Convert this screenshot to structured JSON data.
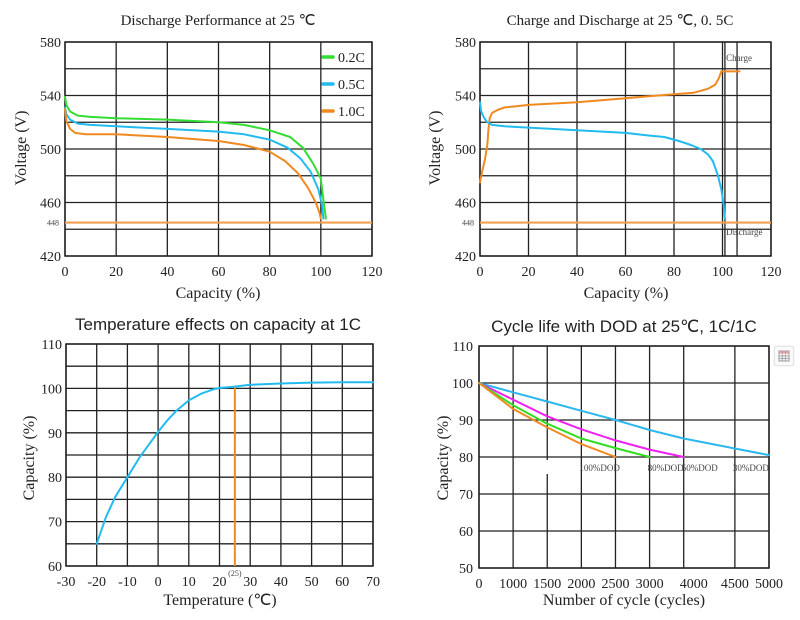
{
  "chart_data": [
    {
      "id": "discharge",
      "type": "line",
      "title": "Discharge Performance at 25 ℃",
      "xlabel": "Capacity (%)",
      "ylabel": "Voltage (V)",
      "xlim": [
        0,
        120
      ],
      "ylim": [
        420,
        580
      ],
      "xticks": [
        0,
        20,
        40,
        60,
        80,
        100,
        120
      ],
      "yticks": [
        580,
        540,
        500,
        460,
        420
      ],
      "ygrid_step": 20,
      "grid": true,
      "legend_position": "top-right",
      "reference_line": {
        "y": 448,
        "label": "448",
        "color": "#f0a050"
      },
      "series": [
        {
          "name": "0.2C",
          "color": "#33dd33",
          "x": [
            0,
            0.5,
            2,
            5,
            10,
            20,
            40,
            60,
            70,
            80,
            88,
            93,
            97,
            100,
            101,
            102
          ],
          "y": [
            539,
            533,
            528,
            525,
            524,
            523,
            522,
            520,
            518,
            514,
            509,
            501,
            489,
            478,
            462,
            448
          ]
        },
        {
          "name": "0.5C",
          "color": "#22bbf0",
          "x": [
            0,
            0.5,
            2,
            5,
            10,
            20,
            40,
            60,
            70,
            80,
            87,
            92,
            96,
            99,
            100.5,
            101
          ],
          "y": [
            531,
            526,
            522,
            519,
            518,
            517,
            515,
            513,
            511,
            507,
            501,
            493,
            483,
            470,
            458,
            448
          ]
        },
        {
          "name": "1.0C",
          "color": "#f08a20",
          "x": [
            0,
            0.5,
            2,
            4,
            8,
            20,
            40,
            60,
            70,
            80,
            86,
            91,
            95,
            98,
            99.5,
            100
          ],
          "y": [
            530,
            521,
            515,
            512,
            511,
            511,
            509,
            506,
            503,
            498,
            491,
            482,
            471,
            460,
            452,
            448
          ]
        }
      ]
    },
    {
      "id": "charge-discharge",
      "type": "line",
      "title": "Charge and Discharge  at 25 ℃, 0. 5C",
      "xlabel": "Capacity (%)",
      "ylabel": "Voltage (V)",
      "xlim": [
        0,
        120
      ],
      "ylim": [
        420,
        580
      ],
      "xticks": [
        0,
        20,
        40,
        60,
        80,
        100,
        120
      ],
      "yticks": [
        580,
        540,
        500,
        460,
        420
      ],
      "ygrid_step": 20,
      "extra_vlines": [
        101,
        106
      ],
      "grid": true,
      "reference_line": {
        "y": 448,
        "label": "448",
        "color": "#f0a050"
      },
      "annotations": [
        {
          "text": "Charge",
          "x": 101.5,
          "y": 568
        },
        {
          "text": "Discharge",
          "x": 101.5,
          "y": 438
        }
      ],
      "series": [
        {
          "name": "Charge",
          "color": "#f08a20",
          "x": [
            0,
            1,
            2,
            3,
            3.5,
            4,
            5,
            7,
            10,
            15,
            20,
            40,
            60,
            80,
            88,
            94,
            97,
            98.5,
            99.5,
            100,
            107
          ],
          "y": [
            475,
            484,
            492,
            503,
            515,
            523,
            527,
            529,
            531,
            532,
            533,
            535,
            538,
            541,
            542,
            545,
            548,
            553,
            558,
            558,
            558
          ]
        },
        {
          "name": "Discharge",
          "color": "#22bbf0",
          "x": [
            0,
            0.5,
            1.5,
            3,
            5,
            10,
            20,
            40,
            60,
            70,
            76,
            82,
            87,
            91,
            94,
            96,
            98,
            99.5,
            100.5,
            101
          ],
          "y": [
            535,
            528,
            524,
            520,
            518,
            517,
            516,
            514,
            512,
            510,
            509,
            506,
            503,
            500,
            496,
            491,
            481,
            470,
            458,
            448
          ]
        }
      ]
    },
    {
      "id": "temperature",
      "type": "line",
      "title": "Temperature effects on capacity at 1C",
      "xlabel": "Temperature (℃)",
      "ylabel": "Capacity (%)",
      "xlim": [
        -30,
        70
      ],
      "ylim": [
        60,
        110
      ],
      "xticks": [
        -30,
        -20,
        -10,
        0,
        10,
        20,
        30,
        40,
        50,
        60,
        70
      ],
      "yticks": [
        110,
        100,
        90,
        80,
        70,
        60
      ],
      "ygrid_step": 5,
      "grid": true,
      "vmarker": {
        "x": 25,
        "label": "(25)",
        "color": "#f08a20",
        "y_top": 100.5
      },
      "series": [
        {
          "name": "Capacity",
          "color": "#22bbf0",
          "x": [
            -20,
            -17,
            -14,
            -10,
            -6,
            -2,
            0,
            3,
            6,
            10,
            14,
            18,
            20,
            25,
            30,
            40,
            50,
            60,
            70
          ],
          "y": [
            65,
            71,
            75.5,
            80,
            84.5,
            88.3,
            90.2,
            92.8,
            95,
            97.3,
            98.8,
            99.8,
            100.1,
            100.4,
            100.8,
            101.1,
            101.3,
            101.4,
            101.4
          ]
        }
      ]
    },
    {
      "id": "cycle-life",
      "type": "line",
      "title": "Cycle life with DOD at 25℃, 1C/1C",
      "xlabel": "Number of cycle (cycles)",
      "ylabel": "Capacity (%)",
      "xticks": [
        0,
        1000,
        1500,
        2000,
        2500,
        3000,
        4000,
        4500,
        5000
      ],
      "yticks": [
        110,
        100,
        90,
        80,
        70,
        60,
        50
      ],
      "ylim": [
        50,
        110
      ],
      "ygrid_step": 10,
      "grid": true,
      "series": [
        {
          "name": "30%DOD",
          "color": "#2ab8ee",
          "x": [
            0,
            1000,
            1500,
            2000,
            2500,
            3000,
            4000,
            4500,
            5000
          ],
          "y": [
            100,
            97.5,
            95,
            92.5,
            90,
            87.3,
            85,
            82.3,
            80.5
          ]
        },
        {
          "name": "50%DOD",
          "color": "#ee22ee",
          "x": [
            0,
            1000,
            1500,
            2000,
            2500,
            3000,
            4000
          ],
          "y": [
            100,
            95.5,
            91,
            87.5,
            84.5,
            82,
            80
          ]
        },
        {
          "name": "80%DOD",
          "color": "#33dd22",
          "x": [
            0,
            1000,
            1500,
            2000,
            2500,
            3000
          ],
          "y": [
            100,
            94,
            89,
            85,
            82.4,
            80
          ]
        },
        {
          "name": "100%DOD",
          "color": "#f08a20",
          "x": [
            0,
            1000,
            1500,
            2000,
            2500
          ],
          "y": [
            100,
            93,
            88,
            83.5,
            80
          ]
        }
      ],
      "series_labels": [
        {
          "text": "100%DOD",
          "at_x": 2000
        },
        {
          "text": "80%DOD",
          "at_x": 3000
        },
        {
          "text": "50%DOD",
          "at_x": 4000
        },
        {
          "text": "30%DOD",
          "at_x": 4500
        }
      ]
    }
  ],
  "ui": {
    "corner_button_icon": "fullscreen-grid-icon"
  }
}
